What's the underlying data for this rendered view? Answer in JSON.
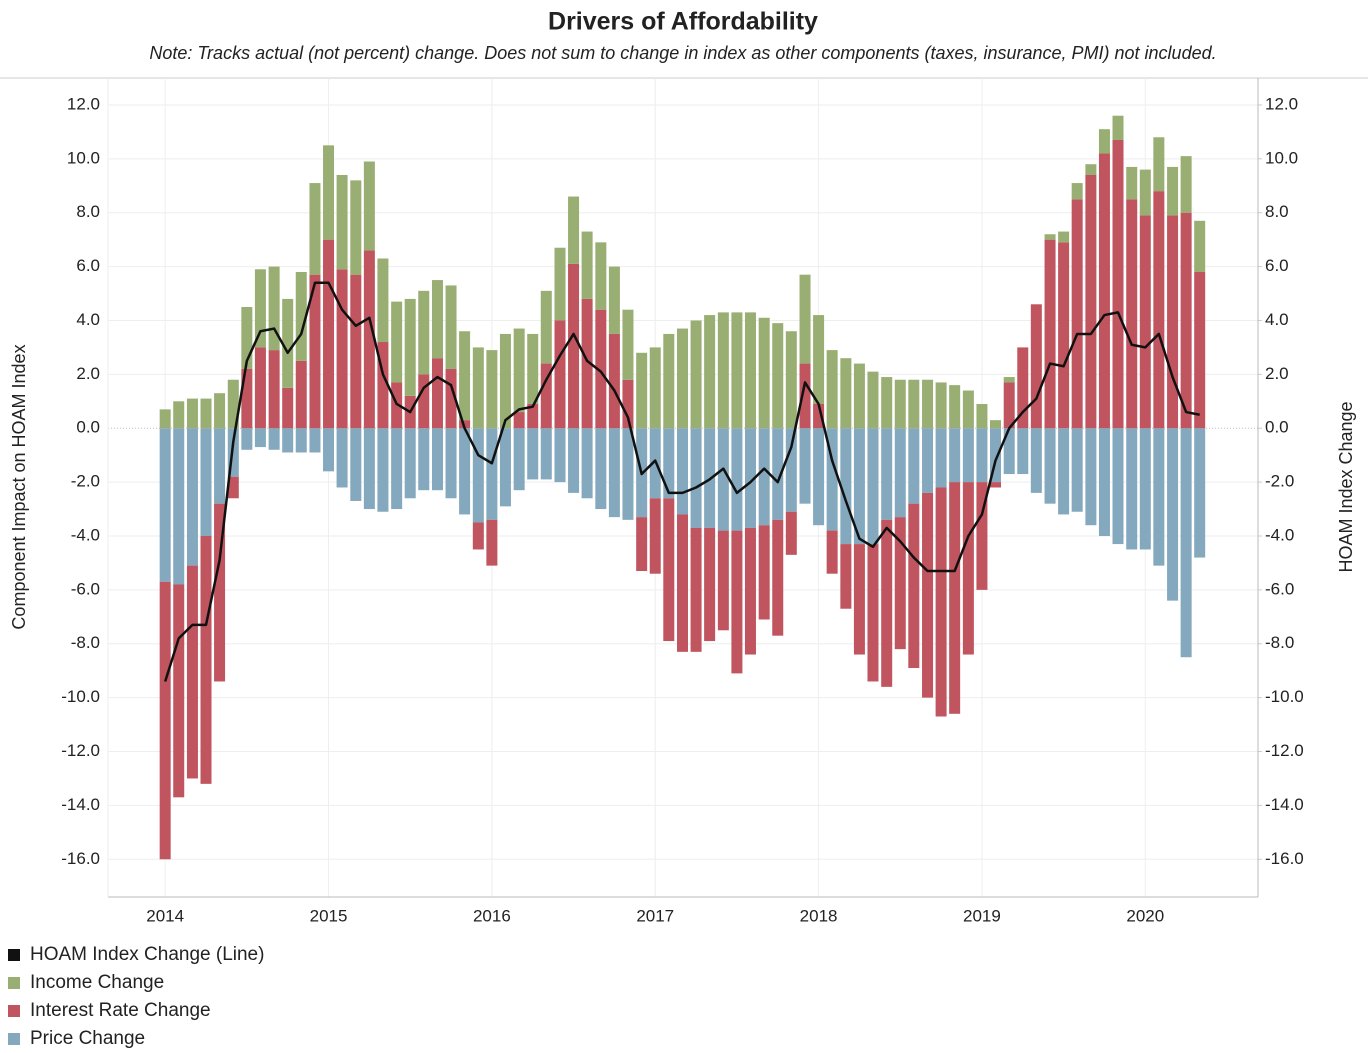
{
  "chart_data": {
    "type": "bar",
    "title": "Drivers of Affordability",
    "subtitle": "Note: Tracks actual (not percent) change. Does not sum to change in index as other components (taxes, insurance, PMI) not included.",
    "y_label": "Component Impact on HOAM Index",
    "y2_label": "HOAM Index Change",
    "x": [
      2014,
      2014.083,
      2014.167,
      2014.25,
      2014.333,
      2014.417,
      2014.5,
      2014.583,
      2014.667,
      2014.75,
      2014.833,
      2014.917,
      2015,
      2015.083,
      2015.167,
      2015.25,
      2015.333,
      2015.417,
      2015.5,
      2015.583,
      2015.667,
      2015.75,
      2015.833,
      2015.917,
      2016,
      2016.083,
      2016.167,
      2016.25,
      2016.333,
      2016.417,
      2016.5,
      2016.583,
      2016.667,
      2016.75,
      2016.833,
      2016.917,
      2017,
      2017.083,
      2017.167,
      2017.25,
      2017.333,
      2017.417,
      2017.5,
      2017.583,
      2017.667,
      2017.75,
      2017.833,
      2017.917,
      2018,
      2018.083,
      2018.167,
      2018.25,
      2018.333,
      2018.417,
      2018.5,
      2018.583,
      2018.667,
      2018.75,
      2018.833,
      2018.917,
      2019,
      2019.083,
      2019.167,
      2019.25,
      2019.333,
      2019.417,
      2019.5,
      2019.583,
      2019.667,
      2019.75,
      2019.833,
      2019.917,
      2020,
      2020.083,
      2020.167,
      2020.25,
      2020.333
    ],
    "series": [
      {
        "name": "HOAM Index Change (Line)",
        "type": "line",
        "axis": "y2",
        "color": "#111111",
        "values": [
          -9.4,
          -7.8,
          -7.3,
          -7.3,
          -4.9,
          -0.5,
          2.5,
          3.6,
          3.7,
          2.8,
          3.5,
          5.4,
          5.4,
          4.4,
          3.8,
          4.1,
          2.0,
          0.9,
          0.6,
          1.5,
          1.9,
          1.6,
          0.0,
          -1.0,
          -1.3,
          0.3,
          0.7,
          0.8,
          1.8,
          2.7,
          3.5,
          2.5,
          2.1,
          1.4,
          0.4,
          -1.7,
          -1.2,
          -2.4,
          -2.4,
          -2.2,
          -1.9,
          -1.5,
          -2.4,
          -2.0,
          -1.5,
          -2.0,
          -0.7,
          1.7,
          0.9,
          -1.2,
          -2.7,
          -4.1,
          -4.4,
          -3.7,
          -4.2,
          -4.8,
          -5.3,
          -5.3,
          -5.3,
          -4.0,
          -3.2,
          -1.2,
          0.0,
          0.6,
          1.1,
          2.4,
          2.3,
          3.5,
          3.5,
          4.2,
          4.3,
          3.1,
          3.0,
          3.5,
          1.9,
          0.6,
          0.5
        ]
      },
      {
        "name": "Income Change",
        "color": "#99ae72",
        "values": [
          0.7,
          1.0,
          1.1,
          1.1,
          1.3,
          1.8,
          2.3,
          2.9,
          3.1,
          3.3,
          3.3,
          3.4,
          3.5,
          3.5,
          3.5,
          3.3,
          3.1,
          3.0,
          3.6,
          3.1,
          2.9,
          3.1,
          3.3,
          3.0,
          2.9,
          3.5,
          3.1,
          2.6,
          2.7,
          2.7,
          2.5,
          2.5,
          2.5,
          2.5,
          2.6,
          2.8,
          3.0,
          3.5,
          3.7,
          4.0,
          4.2,
          4.3,
          4.3,
          4.3,
          4.1,
          3.9,
          3.6,
          3.3,
          3.3,
          2.9,
          2.6,
          2.4,
          2.1,
          1.9,
          1.8,
          1.8,
          1.8,
          1.7,
          1.6,
          1.4,
          0.9,
          0.3,
          0.2,
          0.0,
          0.0,
          0.2,
          0.4,
          0.6,
          0.4,
          0.9,
          0.9,
          1.2,
          1.7,
          2.0,
          1.8,
          2.1,
          1.9
        ]
      },
      {
        "name": "Interest Rate Change",
        "color": "#c0555f",
        "values": [
          -10.3,
          -7.9,
          -7.9,
          -9.2,
          -6.6,
          -0.8,
          2.2,
          3.0,
          2.9,
          1.5,
          2.5,
          5.7,
          7.0,
          5.9,
          5.7,
          6.6,
          3.2,
          1.7,
          1.2,
          2.0,
          2.6,
          2.2,
          0.3,
          -1.0,
          -1.7,
          0.0,
          0.6,
          0.9,
          2.4,
          4.0,
          6.1,
          4.8,
          4.4,
          3.5,
          1.8,
          -2.0,
          -2.8,
          -5.3,
          -5.1,
          -4.6,
          -4.2,
          -3.7,
          -5.3,
          -4.7,
          -3.5,
          -4.3,
          -1.6,
          2.4,
          0.9,
          -1.6,
          -2.4,
          -4.1,
          -5.1,
          -6.2,
          -4.9,
          -6.1,
          -7.6,
          -8.5,
          -8.6,
          -6.4,
          -4.0,
          -0.2,
          1.7,
          3.0,
          4.6,
          7.0,
          6.9,
          8.5,
          9.4,
          10.2,
          10.7,
          8.5,
          7.9,
          8.8,
          7.9,
          8.0,
          5.8
        ]
      },
      {
        "name": "Price Change",
        "color": "#84a8bd",
        "values": [
          -5.7,
          -5.8,
          -5.1,
          -4.0,
          -2.8,
          -1.8,
          -0.8,
          -0.7,
          -0.8,
          -0.9,
          -0.9,
          -0.9,
          -1.6,
          -2.2,
          -2.7,
          -3.0,
          -3.1,
          -3.0,
          -2.6,
          -2.3,
          -2.3,
          -2.6,
          -3.2,
          -3.5,
          -3.4,
          -2.9,
          -2.3,
          -1.9,
          -1.9,
          -2.0,
          -2.4,
          -2.6,
          -3.0,
          -3.3,
          -3.4,
          -3.3,
          -2.6,
          -2.6,
          -3.2,
          -3.7,
          -3.7,
          -3.8,
          -3.8,
          -3.7,
          -3.6,
          -3.4,
          -3.1,
          -2.8,
          -3.6,
          -3.8,
          -4.3,
          -4.3,
          -4.3,
          -3.4,
          -3.3,
          -2.8,
          -2.4,
          -2.2,
          -2.0,
          -2.0,
          -2.0,
          -2.0,
          -1.7,
          -1.7,
          -2.4,
          -2.8,
          -3.2,
          -3.1,
          -3.6,
          -4.0,
          -4.3,
          -4.5,
          -4.5,
          -5.1,
          -6.4,
          -8.5,
          -4.8
        ]
      }
    ],
    "stacked": true,
    "xlim": [
      2013.65,
      2020.69
    ],
    "xticks": [
      2014,
      2015,
      2016,
      2017,
      2018,
      2019,
      2020
    ],
    "ylim": [
      -17.4,
      13.0
    ],
    "yticks": [
      {
        "value": -16,
        "label": "-16.0"
      },
      {
        "value": -14,
        "label": "-14.0"
      },
      {
        "value": -12,
        "label": "-12.0"
      },
      {
        "value": -10,
        "label": "-10.0"
      },
      {
        "value": -8,
        "label": "-8.0"
      },
      {
        "value": -6,
        "label": "-6.0"
      },
      {
        "value": -4,
        "label": "-4.0"
      },
      {
        "value": -2,
        "label": "-2.0"
      },
      {
        "value": 0,
        "label": "0.0"
      },
      {
        "value": 2,
        "label": "2.0"
      },
      {
        "value": 4,
        "label": "4.0"
      },
      {
        "value": 6,
        "label": "6.0"
      },
      {
        "value": 8,
        "label": "8.0"
      },
      {
        "value": 10,
        "label": "10.0"
      },
      {
        "value": 12,
        "label": "12.0"
      }
    ],
    "y2lim": [
      -17.4,
      13.0
    ],
    "y2ticks": [
      {
        "value": -16,
        "label": "-16.0"
      },
      {
        "value": -14,
        "label": "-14.0"
      },
      {
        "value": -12,
        "label": "-12.0"
      },
      {
        "value": -10,
        "label": "-10.0"
      },
      {
        "value": -8,
        "label": "-8.0"
      },
      {
        "value": -6,
        "label": "-6.0"
      },
      {
        "value": -4,
        "label": "-4.0"
      },
      {
        "value": -2,
        "label": "-2.0"
      },
      {
        "value": 0,
        "label": "0.0"
      },
      {
        "value": 2,
        "label": "2.0"
      },
      {
        "value": 4,
        "label": "4.0"
      },
      {
        "value": 6,
        "label": "6.0"
      },
      {
        "value": 8,
        "label": "8.0"
      },
      {
        "value": 10,
        "label": "10.0"
      },
      {
        "value": 12,
        "label": "12.0"
      }
    ],
    "grid": true,
    "legend": "bottom-left"
  }
}
